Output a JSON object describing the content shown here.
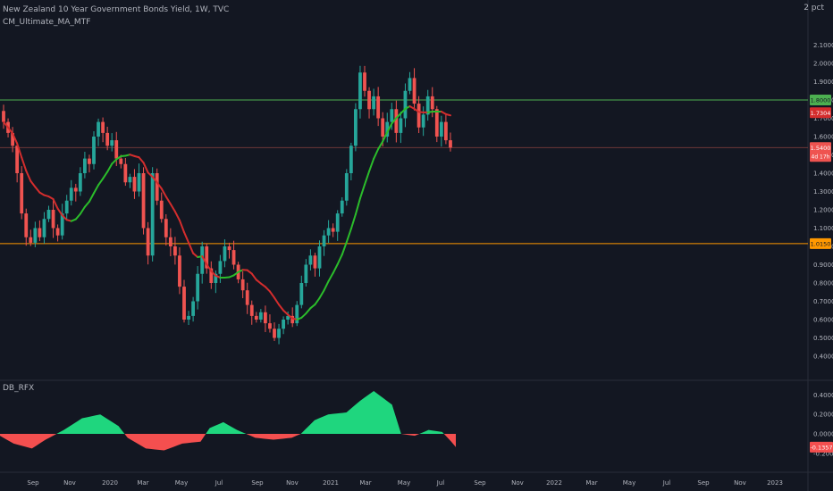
{
  "header": {
    "title": "New Zealand 10 Year Government Bonds Yield, 1W, TVC",
    "indicator_1": "CM_Ultimate_MA_MTF",
    "indicator_2": "DB_RFX",
    "unit_label": "2 pct"
  },
  "colors": {
    "background": "#131722",
    "up": "#26a69a",
    "down": "#ef5350",
    "ma_up": "#2bbd2b",
    "ma_down": "#d42d2d",
    "osc_pos": "#1fd67e",
    "osc_neg": "#f44f4f",
    "resistance": "#4caf50",
    "support": "#ff9800",
    "axis_text": "#b2b5be"
  },
  "chart_data": [
    {
      "type": "candlestick",
      "name": "New Zealand 10 Year Government Bonds Yield",
      "y_ticks": [
        "2.1000",
        "2.0000",
        "1.9000",
        "1.8000",
        "1.7000",
        "1.6000",
        "1.5000",
        "1.4000",
        "1.3000",
        "1.2000",
        "1.1000",
        "1.0000",
        "0.9000",
        "0.8000",
        "0.7000",
        "0.6000",
        "0.5000",
        "0.4000"
      ],
      "ylim": [
        0.33,
        2.18
      ],
      "x_ticks": [
        "Sep",
        "Nov",
        "2020",
        "Mar",
        "May",
        "Jul",
        "Sep",
        "Nov",
        "2021",
        "Mar",
        "May",
        "Jul",
        "Sep",
        "Nov",
        "2022",
        "Mar",
        "May",
        "Jul",
        "Sep",
        "Nov",
        "2023"
      ],
      "candles_close": [
        1.68,
        1.62,
        1.55,
        1.4,
        1.18,
        1.05,
        1.02,
        1.1,
        1.05,
        1.15,
        1.2,
        1.1,
        1.06,
        1.18,
        1.25,
        1.32,
        1.3,
        1.4,
        1.48,
        1.45,
        1.6,
        1.68,
        1.62,
        1.55,
        1.58,
        1.48,
        1.45,
        1.35,
        1.38,
        1.3,
        1.4,
        1.1,
        0.95,
        1.4,
        1.25,
        1.15,
        1.05,
        1.0,
        0.95,
        0.78,
        0.6,
        0.62,
        0.7,
        0.85,
        1.0,
        0.88,
        0.8,
        0.85,
        0.92,
        1.0,
        0.98,
        0.9,
        0.82,
        0.76,
        0.68,
        0.62,
        0.6,
        0.64,
        0.58,
        0.55,
        0.5,
        0.55,
        0.6,
        0.62,
        0.58,
        0.68,
        0.8,
        0.9,
        0.95,
        0.88,
        1.0,
        1.06,
        1.1,
        1.08,
        1.18,
        1.25,
        1.4,
        1.55,
        1.75,
        1.95,
        1.85,
        1.75,
        1.82,
        1.7,
        1.6,
        1.68,
        1.75,
        1.62,
        1.7,
        1.85,
        1.92,
        1.78,
        1.65,
        1.72,
        1.82,
        1.75,
        1.6,
        1.68,
        1.58,
        1.54
      ],
      "last_value": "1.5400",
      "last_label_sub": "4d 17h",
      "ma_value": "1.7304",
      "resistance_level": "1.8000",
      "resistance_label": "1.8000",
      "support_level": "1.0150",
      "support_label": "1.0150"
    },
    {
      "type": "area",
      "name": "DB_RFX",
      "y_ticks": [
        "0.4000",
        "0.2000",
        "0.0000",
        "-0.2000"
      ],
      "ylim": [
        -0.34,
        0.5
      ],
      "last_value_label": "-0.1357"
    }
  ]
}
